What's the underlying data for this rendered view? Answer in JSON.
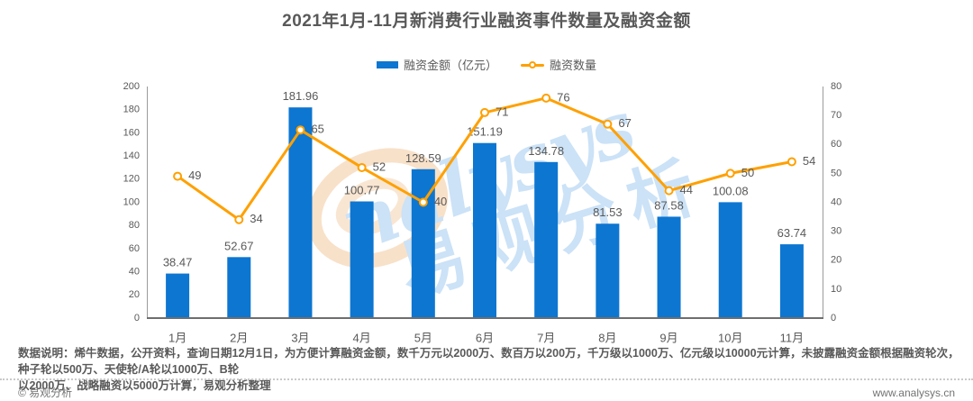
{
  "title": "2021年1月-11月新消费行业融资事件数量及融资金额",
  "legend": {
    "bar_label": "融资金额（亿元）",
    "line_label": "融资数量"
  },
  "watermark": {
    "latin": "nalysys",
    "cjk": "易观分析"
  },
  "chart_data": {
    "type": "bar",
    "subtype": "combo-bar-line",
    "categories": [
      "1月",
      "2月",
      "3月",
      "4月",
      "5月",
      "6月",
      "7月",
      "8月",
      "9月",
      "10月",
      "11月"
    ],
    "series": [
      {
        "name": "融资金额（亿元）",
        "type": "bar",
        "axis": "left",
        "color": "#0D76D1",
        "values": [
          38.47,
          52.67,
          181.96,
          100.77,
          128.59,
          151.19,
          134.78,
          81.53,
          87.58,
          100.08,
          63.74
        ]
      },
      {
        "name": "融资数量",
        "type": "line",
        "axis": "right",
        "color": "#FFA000",
        "marker_fill": "#FFFFFF",
        "values": [
          49,
          34,
          65,
          52,
          40,
          71,
          76,
          67,
          44,
          50,
          54
        ]
      }
    ],
    "axes": {
      "left": {
        "min": 0,
        "max": 200,
        "step": 20
      },
      "right": {
        "min": 0,
        "max": 80,
        "step": 10
      }
    },
    "grid": false,
    "legend_position": "top-center",
    "label_color": "#595959",
    "axis_line_color": "#9B9B9B",
    "baseline_color": "#6E6E6E",
    "title": "2021年1月-11月新消费行业融资事件数量及融资金额",
    "xlabel": "",
    "ylabel_left": "融资金额（亿元）",
    "ylabel_right": "融资数量"
  },
  "footnote": {
    "text": "数据说明：烯牛数据，公开资料，查询日期12月1日，为方便计算融资金额，数千万元以2000万、数百万以200万，千万级以1000万、亿元级以10000元计算，未披露融资金额根据融资轮次，种子轮以500万、天使轮/A轮以1000万、B轮\n以2000万、战略融资以5000万计算，易观分析整理"
  },
  "footer": {
    "copyright": "© 易观分析",
    "website": "www.analysys.cn"
  }
}
